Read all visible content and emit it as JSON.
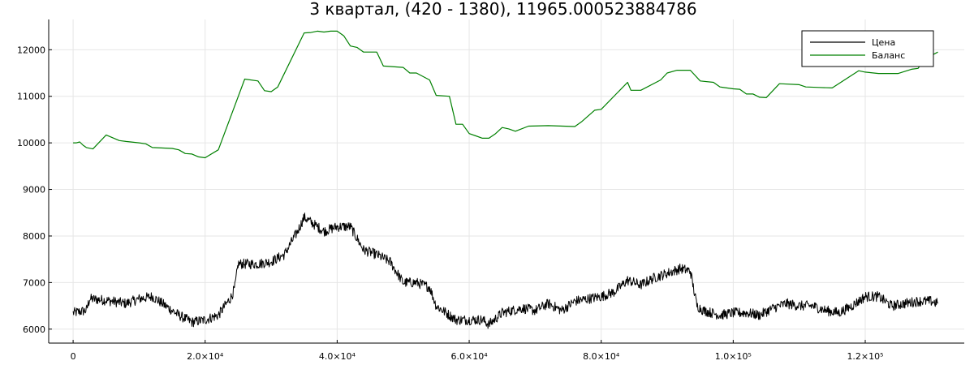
{
  "chart_data": {
    "type": "line",
    "title": "3 квартал, (420 - 1380), 11965.000523884786",
    "xlabel": "",
    "ylabel": "",
    "xlim": [
      -3700,
      135000
    ],
    "ylim": [
      5700,
      12650
    ],
    "grid": true,
    "legend_position": "top-right",
    "x_ticks": [
      {
        "value": 0,
        "label": "0"
      },
      {
        "value": 20000,
        "label": "2.0×10⁴"
      },
      {
        "value": 40000,
        "label": "4.0×10⁴"
      },
      {
        "value": 60000,
        "label": "6.0×10⁴"
      },
      {
        "value": 80000,
        "label": "8.0×10⁴"
      },
      {
        "value": 100000,
        "label": "1.0×10⁵"
      },
      {
        "value": 120000,
        "label": "1.2×10⁵"
      }
    ],
    "y_ticks": [
      {
        "value": 6000,
        "label": "6000"
      },
      {
        "value": 7000,
        "label": "7000"
      },
      {
        "value": 8000,
        "label": "8000"
      },
      {
        "value": 9000,
        "label": "9000"
      },
      {
        "value": 10000,
        "label": "10000"
      },
      {
        "value": 11000,
        "label": "11000"
      },
      {
        "value": 12000,
        "label": "12000"
      }
    ],
    "series": [
      {
        "name": "Цена",
        "color": "#000000",
        "noise": 110,
        "x": [
          0,
          2000,
          2500,
          5000,
          8000,
          10000,
          12000,
          14000,
          16000,
          18000,
          20000,
          22000,
          24000,
          24500,
          25000,
          26000,
          28000,
          30000,
          32000,
          34000,
          35000,
          36000,
          38000,
          40000,
          42000,
          44000,
          46000,
          48000,
          50000,
          52000,
          54000,
          55000,
          57000,
          58000,
          60000,
          62000,
          63000,
          65000,
          68000,
          70000,
          72000,
          74000,
          76000,
          78000,
          80000,
          82000,
          84000,
          86000,
          88000,
          90000,
          92000,
          93500,
          94500,
          95500,
          98000,
          100000,
          102000,
          104000,
          106000,
          108000,
          110000,
          112000,
          114000,
          116000,
          118000,
          120000,
          122000,
          124000,
          126000,
          128000,
          130000,
          131000
        ],
        "y": [
          6350,
          6400,
          6650,
          6620,
          6550,
          6650,
          6700,
          6500,
          6300,
          6150,
          6200,
          6300,
          6700,
          6900,
          7400,
          7400,
          7400,
          7450,
          7600,
          8100,
          8400,
          8300,
          8100,
          8200,
          8200,
          7700,
          7600,
          7450,
          7000,
          7000,
          6900,
          6500,
          6300,
          6200,
          6200,
          6200,
          6100,
          6350,
          6450,
          6400,
          6550,
          6400,
          6600,
          6650,
          6700,
          6800,
          7050,
          6950,
          7100,
          7200,
          7300,
          7250,
          6500,
          6400,
          6300,
          6350,
          6350,
          6300,
          6450,
          6550,
          6500,
          6500,
          6400,
          6350,
          6500,
          6700,
          6700,
          6500,
          6550,
          6600,
          6600,
          6550
        ]
      },
      {
        "name": "Баланс",
        "color": "#008000",
        "x": [
          0,
          500,
          1000,
          1500,
          2000,
          3000,
          5000,
          7000,
          8000,
          10000,
          11000,
          12000,
          15000,
          16000,
          17000,
          18000,
          19000,
          20000,
          22000,
          26000,
          28000,
          29000,
          30000,
          31000,
          35000,
          36000,
          37000,
          38000,
          39000,
          40000,
          41000,
          42000,
          43000,
          44000,
          46000,
          47000,
          50000,
          51000,
          52000,
          54000,
          55000,
          57000,
          58000,
          59000,
          60000,
          61000,
          62000,
          63000,
          64000,
          65000,
          66000,
          67000,
          69000,
          72000,
          76000,
          77000,
          79000,
          80000,
          84000,
          84500,
          86000,
          89000,
          90000,
          91500,
          93500,
          95000,
          97000,
          98000,
          100000,
          101000,
          102000,
          103000,
          104000,
          105000,
          107000,
          110000,
          111000,
          113000,
          115000,
          119000,
          120000,
          122000,
          125000,
          127000,
          128000,
          129000,
          131000
        ],
        "y": [
          10000,
          10000,
          10020,
          9950,
          9900,
          9870,
          10170,
          10050,
          10030,
          10000,
          9980,
          9900,
          9880,
          9850,
          9770,
          9760,
          9700,
          9680,
          9850,
          11370,
          11330,
          11120,
          11100,
          11200,
          12360,
          12370,
          12400,
          12380,
          12400,
          12400,
          12300,
          12080,
          12050,
          11950,
          11950,
          11650,
          11620,
          11500,
          11500,
          11350,
          11020,
          11000,
          10400,
          10400,
          10200,
          10150,
          10100,
          10100,
          10200,
          10330,
          10300,
          10250,
          10360,
          10370,
          10350,
          10450,
          10700,
          10720,
          11300,
          11130,
          11130,
          11350,
          11500,
          11560,
          11560,
          11330,
          11300,
          11200,
          11160,
          11150,
          11050,
          11050,
          10980,
          10970,
          11270,
          11250,
          11200,
          11190,
          11180,
          11550,
          11520,
          11490,
          11490,
          11580,
          11600,
          11800,
          11950
        ]
      }
    ]
  }
}
